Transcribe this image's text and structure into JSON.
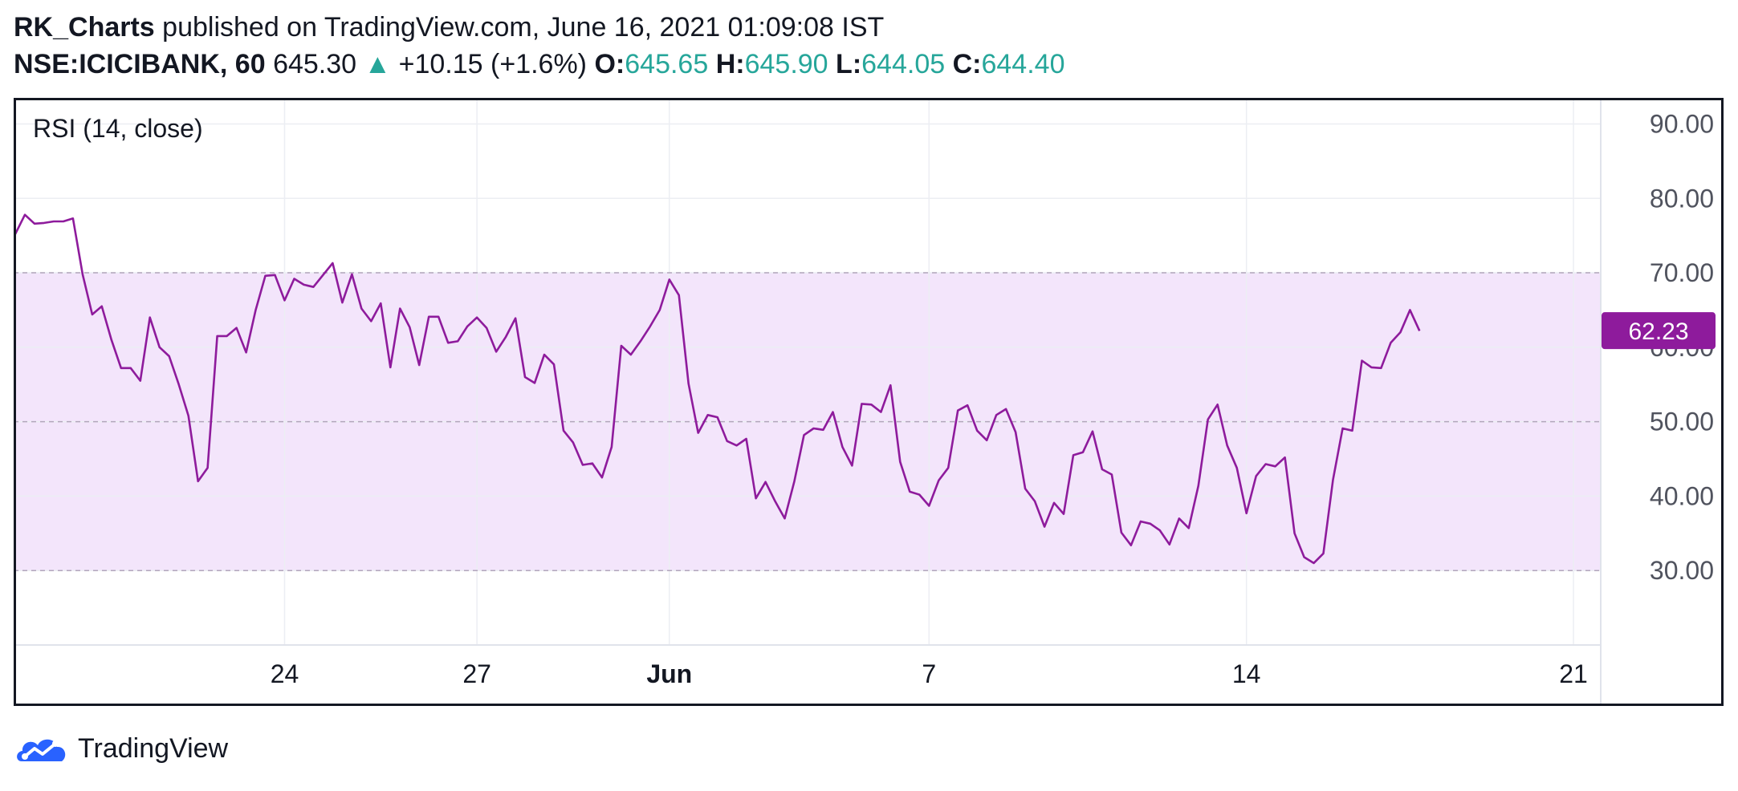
{
  "header": {
    "author": "RK_Charts",
    "published_text": "published on TradingView.com, June 16, 2021 01:09:08 IST",
    "symbol": "NSE:ICICIBANK, 60",
    "price": "645.30",
    "change_arrow": "▲",
    "change": "+10.15 (+1.6%)",
    "open_label": "O:",
    "open_value": "645.65",
    "high_label": "H:",
    "high_value": "645.90",
    "low_label": "L:",
    "low_value": "644.05",
    "close_label": "C:",
    "close_value": "644.40"
  },
  "footer": {
    "brand": "TradingView"
  },
  "colors": {
    "line": "#8e1b9c",
    "band_fill": "#f3e5fb",
    "green": "#26a69a",
    "badge": "#8e1b9c"
  },
  "chart_data": {
    "type": "line",
    "indicator_label": "RSI (14, close)",
    "series": [
      {
        "name": "RSI",
        "values": [
          75.2,
          77.8,
          76.6,
          76.7,
          76.9,
          76.9,
          77.3,
          69.8,
          64.4,
          65.5,
          61.0,
          57.2,
          57.2,
          55.5,
          64.0,
          60.0,
          58.8,
          55.0,
          50.8,
          42.0,
          43.8,
          61.5,
          61.5,
          62.6,
          59.3,
          65.0,
          69.6,
          69.7,
          66.3,
          69.2,
          68.4,
          68.1,
          69.7,
          71.3,
          66.0,
          69.8,
          65.2,
          63.5,
          65.9,
          57.3,
          65.2,
          62.7,
          57.6,
          64.1,
          64.1,
          60.6,
          60.8,
          62.8,
          64.0,
          62.6,
          59.4,
          61.4,
          63.9,
          56.0,
          55.2,
          59.0,
          57.7,
          48.8,
          47.2,
          44.2,
          44.4,
          42.5,
          46.6,
          60.2,
          59.0,
          60.8,
          62.8,
          65.0,
          69.1,
          67.0,
          55.1,
          48.5,
          50.9,
          50.6,
          47.4,
          46.8,
          47.7,
          39.7,
          41.9,
          39.3,
          37.0,
          42.0,
          48.2,
          49.1,
          48.9,
          51.3,
          46.6,
          44.1,
          52.4,
          52.3,
          51.3,
          54.9,
          44.6,
          40.6,
          40.2,
          38.7,
          42.1,
          43.8,
          51.5,
          52.2,
          48.8,
          47.5,
          50.9,
          51.7,
          48.6,
          41.0,
          39.3,
          35.9,
          39.1,
          37.6,
          45.5,
          45.9,
          48.7,
          43.6,
          42.9,
          35.1,
          33.4,
          36.6,
          36.3,
          35.4,
          33.5,
          37.0,
          35.7,
          41.4,
          50.3,
          52.3,
          46.8,
          43.8,
          37.7,
          42.7,
          44.3,
          44.0,
          45.2,
          35.0,
          31.8,
          31.0,
          32.3,
          42.2,
          49.1,
          48.8,
          58.2,
          57.3,
          57.2,
          60.6,
          62.0,
          65.0,
          62.2
        ]
      }
    ],
    "y_ticks": [
      "90.00",
      "80.00",
      "70.00",
      "60.00",
      "50.00",
      "40.00",
      "30.00"
    ],
    "y_tick_values": [
      90,
      80,
      70,
      60,
      50,
      40,
      30
    ],
    "ylim": [
      20,
      93.5
    ],
    "x_ticks": [
      "24",
      "27",
      "Jun",
      "7",
      "14",
      "21"
    ],
    "x_tick_bar_index": [
      28,
      48,
      68,
      95,
      128,
      162
    ],
    "x_tick_bold": [
      false,
      false,
      true,
      false,
      false,
      false
    ],
    "total_bar_slots": 166,
    "band": {
      "upper": 70,
      "lower": 30
    },
    "last_value_label": "62.23",
    "last_value": 62.23,
    "grid": true,
    "legend": "top-left"
  }
}
